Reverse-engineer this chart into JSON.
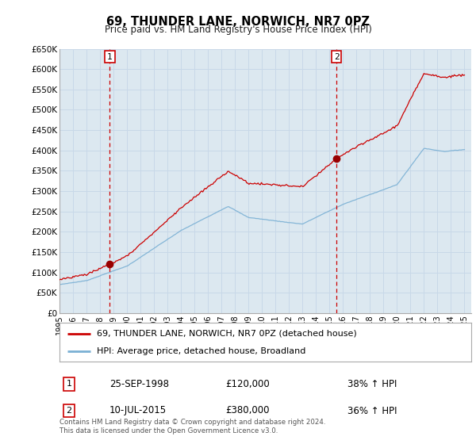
{
  "title": "69, THUNDER LANE, NORWICH, NR7 0PZ",
  "subtitle": "Price paid vs. HM Land Registry's House Price Index (HPI)",
  "legend_line1": "69, THUNDER LANE, NORWICH, NR7 0PZ (detached house)",
  "legend_line2": "HPI: Average price, detached house, Broadland",
  "sale1_date": 1998.73,
  "sale1_price": 120000,
  "sale1_label": "25-SEP-1998",
  "sale1_price_str": "£120,000",
  "sale1_pct": "38% ↑ HPI",
  "sale2_date": 2015.52,
  "sale2_price": 380000,
  "sale2_label": "10-JUL-2015",
  "sale2_price_str": "£380,000",
  "sale2_pct": "36% ↑ HPI",
  "ylim": [
    0,
    650000
  ],
  "xlim": [
    1995.0,
    2025.5
  ],
  "yticks": [
    0,
    50000,
    100000,
    150000,
    200000,
    250000,
    300000,
    350000,
    400000,
    450000,
    500000,
    550000,
    600000,
    650000
  ],
  "ytick_labels": [
    "£0",
    "£50K",
    "£100K",
    "£150K",
    "£200K",
    "£250K",
    "£300K",
    "£350K",
    "£400K",
    "£450K",
    "£500K",
    "£550K",
    "£600K",
    "£650K"
  ],
  "xticks": [
    1995,
    1996,
    1997,
    1998,
    1999,
    2000,
    2001,
    2002,
    2003,
    2004,
    2005,
    2006,
    2007,
    2008,
    2009,
    2010,
    2011,
    2012,
    2013,
    2014,
    2015,
    2016,
    2017,
    2018,
    2019,
    2020,
    2021,
    2022,
    2023,
    2024,
    2025
  ],
  "red_color": "#cc0000",
  "blue_color": "#7ab0d4",
  "marker_color": "#990000",
  "vline_color": "#cc0000",
  "grid_color": "#c8d8e8",
  "bg_color": "#ffffff",
  "plot_bg_color": "#dce8f0",
  "footnote": "Contains HM Land Registry data © Crown copyright and database right 2024.\nThis data is licensed under the Open Government Licence v3.0."
}
